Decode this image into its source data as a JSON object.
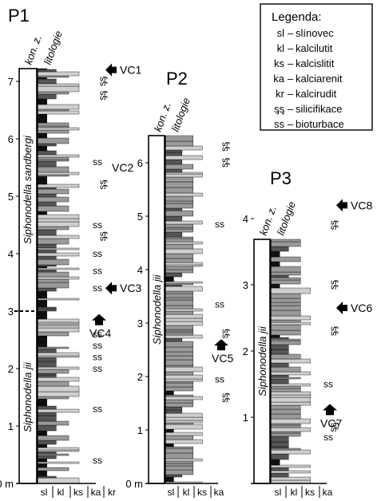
{
  "logs": [
    {
      "id": "P1",
      "title": "P1",
      "col_zone": "kon. z.",
      "col_lith": "litologie",
      "scale_ticks": [
        "0 m",
        "1",
        "2",
        "3",
        "4",
        "5",
        "6",
        "7"
      ],
      "lith_codes": [
        "sl",
        "kl",
        "ks",
        "ka",
        "kr"
      ],
      "zones": [
        {
          "name": "Siphonodella sandbergi",
          "from_m": 3.0,
          "to_m": 7.7
        },
        {
          "name": "Siphonodella jii",
          "from_m": 0.0,
          "to_m": 3.0
        }
      ],
      "samples": [
        {
          "label": "VC1",
          "at_m": 7.2
        },
        {
          "label": "VC2",
          "at_m": 5.5
        },
        {
          "label": "VC3",
          "at_m": 3.4
        },
        {
          "label": "VC4",
          "at_m": 2.95
        }
      ],
      "ss_marks_m": [
        5.6,
        4.5,
        4.0,
        3.7,
        3.4,
        2.6,
        2.4,
        2.2,
        2.0,
        1.3,
        0.4
      ],
      "silicif_marks_m": [
        7.0,
        6.75,
        5.2,
        4.3
      ]
    },
    {
      "id": "P2",
      "title": "P2",
      "col_zone": "kon. z.",
      "col_lith": "litologie",
      "scale_ticks": [
        "0 m",
        "1",
        "2",
        "3",
        "4",
        "5",
        "6"
      ],
      "lith_codes": [
        "sl",
        "kl",
        "ks",
        "ka"
      ],
      "zones": [
        {
          "name": "Siphonodella jii",
          "from_m": 0.0,
          "to_m": 6.5
        }
      ],
      "samples": [
        {
          "label": "VC5",
          "at_m": 2.7
        }
      ],
      "ss_marks_m": [
        4.85,
        3.35,
        1.95
      ],
      "silicif_marks_m": [
        6.3,
        6.0,
        2.8,
        1.6
      ]
    },
    {
      "id": "P3",
      "title": "P3",
      "col_zone": "kon. z.",
      "col_lith": "litologie",
      "scale_ticks": [
        "1",
        "2",
        "3",
        "4"
      ],
      "lith_codes": [
        "sl",
        "kl",
        "ks",
        "ka"
      ],
      "zones": [
        {
          "name": "Siphonodella jii",
          "from_m": 0.0,
          "to_m": 4.55
        }
      ],
      "samples": [
        {
          "label": "VC8",
          "at_m": 4.2
        },
        {
          "label": "VC6",
          "at_m": 2.65
        },
        {
          "label": "VC7",
          "at_m": 1.2
        }
      ],
      "ss_marks_m": [
        1.5,
        0.7
      ],
      "silicif_marks_m": [
        3.9,
        3.0,
        2.3,
        0.85
      ]
    }
  ],
  "legend": {
    "title": "Legenda:",
    "items": [
      {
        "code": "sl",
        "label": "slínovec"
      },
      {
        "code": "kl",
        "label": "kalcilutit"
      },
      {
        "code": "ks",
        "label": "kalcislitit"
      },
      {
        "code": "ka",
        "label": "kalciarenit"
      },
      {
        "code": "kr",
        "label": "kalcirudit"
      },
      {
        "code": "ᶊᶊ",
        "label": "silicifikace"
      },
      {
        "code": "ss",
        "label": "bioturbace"
      }
    ]
  },
  "symbols": {
    "ss": "ss",
    "silicif": "ᶊᶊ"
  },
  "colors": {
    "sl": "#111111",
    "kl": "#555555",
    "ks": "#9a9a9a",
    "ka": "#cfcfcf",
    "kr": "#ececec"
  }
}
